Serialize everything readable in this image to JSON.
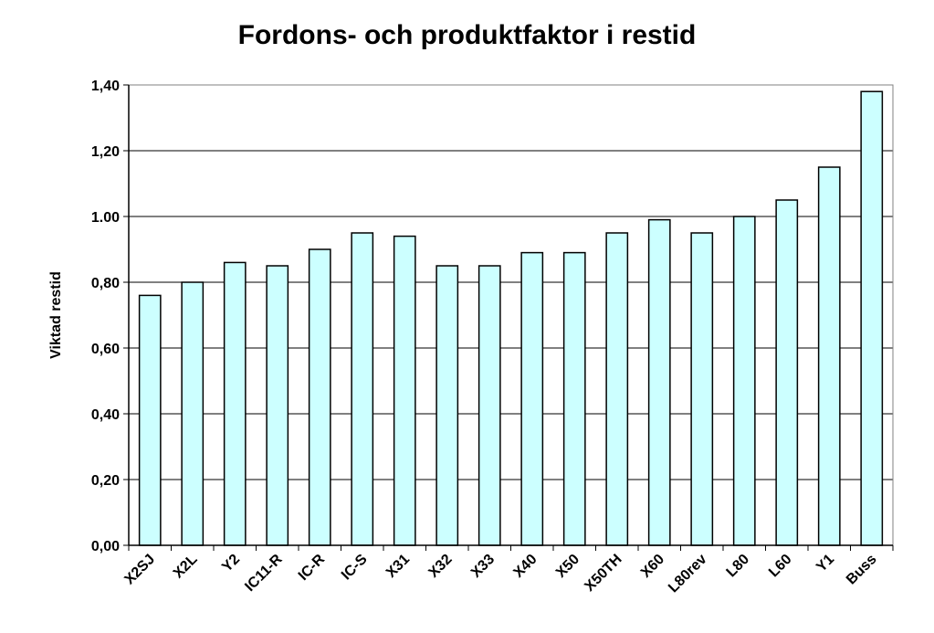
{
  "chart_data": {
    "type": "bar",
    "title": "Fordons- och produktfaktor i restid",
    "xlabel": "",
    "ylabel": "Viktad restid",
    "categories": [
      "X2SJ",
      "X2L",
      "Y2",
      "IC11-R",
      "IC-R",
      "IC-S",
      "X31",
      "X32",
      "X33",
      "X40",
      "X50",
      "X50TH",
      "X60",
      "L80rev",
      "L80",
      "L60",
      "Y1",
      "Buss"
    ],
    "values": [
      0.76,
      0.8,
      0.86,
      0.85,
      0.9,
      0.95,
      0.94,
      0.85,
      0.85,
      0.89,
      0.89,
      0.95,
      0.99,
      0.95,
      1.0,
      1.05,
      1.15,
      1.38
    ],
    "ylim": [
      0,
      1.4
    ],
    "yticks": [
      0,
      0.2,
      0.4,
      0.6,
      0.8,
      1.0,
      1.2,
      1.4
    ],
    "ytick_labels": [
      "0,00",
      "0,20",
      "0,40",
      "0,60",
      "0,80",
      "1.00",
      "1,20",
      "1,40"
    ],
    "grid": true,
    "legend": "none",
    "colors": {
      "bar_fill": "#ccffff",
      "bar_stroke": "#000000",
      "grid": "#000000"
    }
  }
}
